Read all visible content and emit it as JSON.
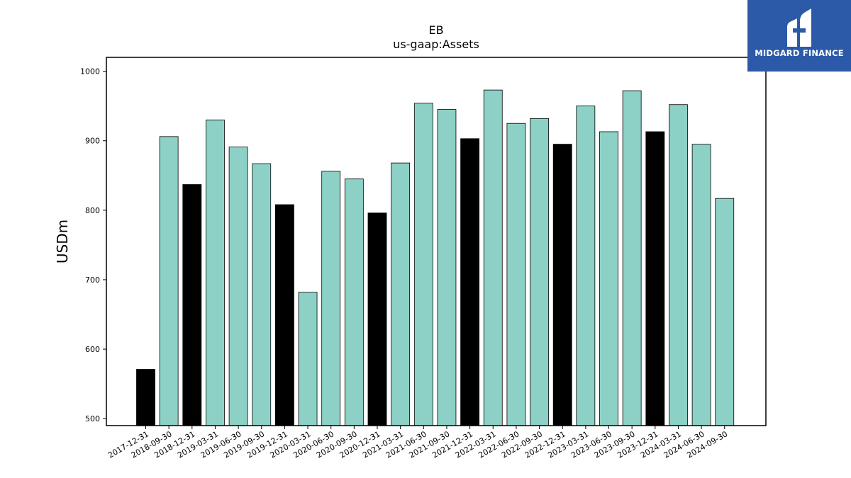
{
  "chart_data": {
    "type": "bar",
    "title": "EB",
    "subtitle": "us-gaap:Assets",
    "ylabel": "USDm",
    "xlabel": "",
    "ylim": [
      490,
      1020
    ],
    "yticks": [
      500,
      600,
      700,
      800,
      900,
      1000
    ],
    "grid": false,
    "categories": [
      "2017-12-31",
      "2018-09-30",
      "2018-12-31",
      "2019-03-31",
      "2019-06-30",
      "2019-09-30",
      "2019-12-31",
      "2020-03-31",
      "2020-06-30",
      "2020-09-30",
      "2020-12-31",
      "2021-03-31",
      "2021-06-30",
      "2021-09-30",
      "2021-12-31",
      "2022-03-31",
      "2022-06-30",
      "2022-09-30",
      "2022-12-31",
      "2023-03-31",
      "2023-06-30",
      "2023-09-30",
      "2023-12-31",
      "2024-03-31",
      "2024-06-30",
      "2024-09-30"
    ],
    "values": [
      571,
      906,
      837,
      930,
      891,
      867,
      808,
      682,
      856,
      845,
      796,
      868,
      954,
      945,
      903,
      973,
      925,
      932,
      895,
      950,
      913,
      972,
      913,
      952,
      895,
      817
    ],
    "annual_flags": [
      true,
      false,
      true,
      false,
      false,
      false,
      true,
      false,
      false,
      false,
      true,
      false,
      false,
      false,
      true,
      false,
      false,
      false,
      true,
      false,
      false,
      false,
      true,
      false,
      false,
      false
    ],
    "colors": {
      "annual": "#000000",
      "quarterly": "#8dd1c6",
      "edge": "#000000"
    }
  },
  "logo": {
    "text": "MIDGARD FINANCE",
    "background": "#2c5aa8"
  }
}
